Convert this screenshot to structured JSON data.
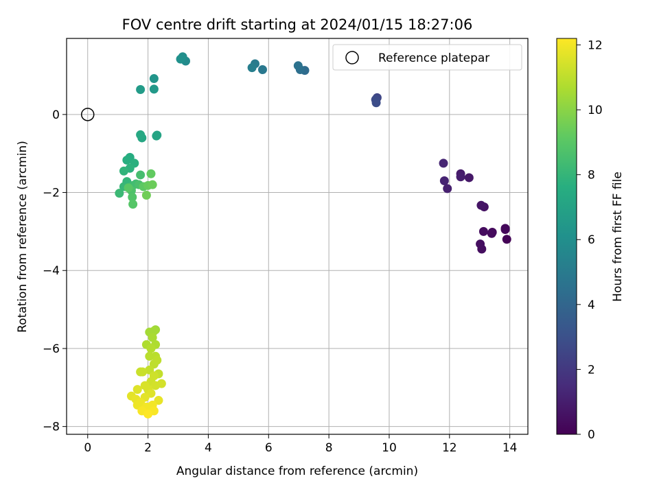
{
  "chart_data": {
    "type": "scatter",
    "title": "FOV centre drift starting at 2024/01/15 18:27:06",
    "xlabel": "Angular distance from reference (arcmin)",
    "ylabel": "Rotation from reference (arcmin)",
    "xlim": [
      -0.7,
      14.6
    ],
    "ylim": [
      -8.2,
      1.95
    ],
    "x_ticks": [
      0,
      2,
      4,
      6,
      8,
      10,
      12,
      14
    ],
    "x_tick_labels": [
      "0",
      "2",
      "4",
      "6",
      "8",
      "10",
      "12",
      "14"
    ],
    "y_ticks": [
      0,
      -2,
      -4,
      -6,
      -8
    ],
    "y_tick_labels": [
      "0",
      "−2",
      "−4",
      "−6",
      "−8"
    ],
    "grid": true,
    "legend": {
      "placement": "top-right",
      "entries": [
        {
          "label": "Reference platepar",
          "marker": "open-circle"
        }
      ]
    },
    "reference_point": {
      "x": 0,
      "y": 0
    },
    "colorbar": {
      "label": "Hours from first FF file",
      "colormap": "viridis",
      "range": [
        0,
        12.2
      ],
      "ticks": [
        0,
        2,
        4,
        6,
        8,
        10,
        12
      ],
      "tick_labels": [
        "0",
        "2",
        "4",
        "6",
        "8",
        "10",
        "12"
      ]
    },
    "points": [
      {
        "x": 13.9,
        "y": -3.2,
        "h": 0.1
      },
      {
        "x": 13.85,
        "y": -2.95,
        "h": 0.2
      },
      {
        "x": 13.85,
        "y": -2.92,
        "h": 0.25
      },
      {
        "x": 13.42,
        "y": -3.02,
        "h": 0.3
      },
      {
        "x": 13.4,
        "y": -3.05,
        "h": 0.35
      },
      {
        "x": 13.13,
        "y": -3.0,
        "h": 0.4
      },
      {
        "x": 13.07,
        "y": -3.45,
        "h": 0.45
      },
      {
        "x": 13.02,
        "y": -3.32,
        "h": 0.5
      },
      {
        "x": 13.15,
        "y": -2.37,
        "h": 0.6
      },
      {
        "x": 13.05,
        "y": -2.33,
        "h": 0.7
      },
      {
        "x": 12.65,
        "y": -1.62,
        "h": 0.8
      },
      {
        "x": 12.37,
        "y": -1.52,
        "h": 0.9
      },
      {
        "x": 12.37,
        "y": -1.6,
        "h": 1.0
      },
      {
        "x": 11.93,
        "y": -1.9,
        "h": 1.1
      },
      {
        "x": 11.83,
        "y": -1.7,
        "h": 1.2
      },
      {
        "x": 11.8,
        "y": -1.25,
        "h": 1.3
      },
      {
        "x": 9.6,
        "y": 0.43,
        "h": 2.6
      },
      {
        "x": 9.55,
        "y": 0.38,
        "h": 2.8
      },
      {
        "x": 9.57,
        "y": 0.3,
        "h": 2.9
      },
      {
        "x": 7.2,
        "y": 1.13,
        "h": 4.3
      },
      {
        "x": 7.05,
        "y": 1.15,
        "h": 4.5
      },
      {
        "x": 6.98,
        "y": 1.25,
        "h": 4.6
      },
      {
        "x": 5.8,
        "y": 1.15,
        "h": 4.9
      },
      {
        "x": 5.55,
        "y": 1.3,
        "h": 5.0
      },
      {
        "x": 5.45,
        "y": 1.2,
        "h": 5.2
      },
      {
        "x": 3.25,
        "y": 1.37,
        "h": 5.8
      },
      {
        "x": 3.15,
        "y": 1.48,
        "h": 6.0
      },
      {
        "x": 3.08,
        "y": 1.42,
        "h": 6.1
      },
      {
        "x": 2.2,
        "y": 0.92,
        "h": 6.3
      },
      {
        "x": 2.2,
        "y": 0.65,
        "h": 6.5
      },
      {
        "x": 1.75,
        "y": 0.64,
        "h": 6.6
      },
      {
        "x": 2.3,
        "y": -0.53,
        "h": 7.0
      },
      {
        "x": 2.28,
        "y": -0.55,
        "h": 7.1
      },
      {
        "x": 1.8,
        "y": -0.6,
        "h": 7.2
      },
      {
        "x": 1.75,
        "y": -0.52,
        "h": 7.3
      },
      {
        "x": 1.4,
        "y": -1.1,
        "h": 7.5
      },
      {
        "x": 1.3,
        "y": -1.17,
        "h": 7.6
      },
      {
        "x": 1.55,
        "y": -1.25,
        "h": 7.7
      },
      {
        "x": 1.4,
        "y": -1.38,
        "h": 7.8
      },
      {
        "x": 1.2,
        "y": -1.45,
        "h": 7.9
      },
      {
        "x": 1.3,
        "y": -1.72,
        "h": 8.0
      },
      {
        "x": 1.2,
        "y": -1.85,
        "h": 8.1
      },
      {
        "x": 1.05,
        "y": -2.02,
        "h": 8.2
      },
      {
        "x": 1.5,
        "y": -1.82,
        "h": 8.3
      },
      {
        "x": 1.6,
        "y": -1.78,
        "h": 8.4
      },
      {
        "x": 1.75,
        "y": -1.55,
        "h": 8.5
      },
      {
        "x": 1.7,
        "y": -1.8,
        "h": 8.6
      },
      {
        "x": 1.45,
        "y": -1.95,
        "h": 8.7
      },
      {
        "x": 1.48,
        "y": -2.12,
        "h": 8.8
      },
      {
        "x": 1.5,
        "y": -2.3,
        "h": 8.9
      },
      {
        "x": 1.35,
        "y": -1.88,
        "h": 9.0
      },
      {
        "x": 1.85,
        "y": -1.85,
        "h": 9.1
      },
      {
        "x": 2.1,
        "y": -1.52,
        "h": 9.2
      },
      {
        "x": 2.0,
        "y": -1.82,
        "h": 9.3
      },
      {
        "x": 2.15,
        "y": -1.8,
        "h": 9.4
      },
      {
        "x": 1.95,
        "y": -2.07,
        "h": 9.5
      },
      {
        "x": 2.25,
        "y": -5.52,
        "h": 10.4
      },
      {
        "x": 2.05,
        "y": -5.58,
        "h": 10.5
      },
      {
        "x": 2.2,
        "y": -5.55,
        "h": 10.5
      },
      {
        "x": 2.15,
        "y": -5.72,
        "h": 10.6
      },
      {
        "x": 1.95,
        "y": -5.9,
        "h": 10.7
      },
      {
        "x": 2.25,
        "y": -5.9,
        "h": 10.7
      },
      {
        "x": 2.1,
        "y": -6.0,
        "h": 10.8
      },
      {
        "x": 2.05,
        "y": -6.2,
        "h": 10.9
      },
      {
        "x": 2.25,
        "y": -6.2,
        "h": 10.9
      },
      {
        "x": 2.3,
        "y": -6.3,
        "h": 11.0
      },
      {
        "x": 2.2,
        "y": -6.4,
        "h": 11.0
      },
      {
        "x": 2.35,
        "y": -6.65,
        "h": 11.1
      },
      {
        "x": 2.05,
        "y": -6.55,
        "h": 11.1
      },
      {
        "x": 1.75,
        "y": -6.6,
        "h": 11.2
      },
      {
        "x": 1.82,
        "y": -6.6,
        "h": 11.2
      },
      {
        "x": 2.2,
        "y": -6.7,
        "h": 11.3
      },
      {
        "x": 2.1,
        "y": -6.85,
        "h": 11.3
      },
      {
        "x": 2.45,
        "y": -6.9,
        "h": 11.4
      },
      {
        "x": 2.25,
        "y": -6.95,
        "h": 11.4
      },
      {
        "x": 1.9,
        "y": -6.95,
        "h": 11.5
      },
      {
        "x": 2.0,
        "y": -7.05,
        "h": 11.5
      },
      {
        "x": 1.65,
        "y": -7.05,
        "h": 11.6
      },
      {
        "x": 2.1,
        "y": -7.15,
        "h": 11.6
      },
      {
        "x": 1.9,
        "y": -7.25,
        "h": 11.7
      },
      {
        "x": 1.45,
        "y": -7.22,
        "h": 11.7
      },
      {
        "x": 1.6,
        "y": -7.3,
        "h": 11.8
      },
      {
        "x": 2.35,
        "y": -7.33,
        "h": 11.8
      },
      {
        "x": 1.75,
        "y": -7.38,
        "h": 11.9
      },
      {
        "x": 1.65,
        "y": -7.45,
        "h": 11.9
      },
      {
        "x": 1.95,
        "y": -7.5,
        "h": 12.0
      },
      {
        "x": 2.15,
        "y": -7.45,
        "h": 12.0
      },
      {
        "x": 1.8,
        "y": -7.6,
        "h": 12.1
      },
      {
        "x": 2.2,
        "y": -7.6,
        "h": 12.1
      },
      {
        "x": 2.0,
        "y": -7.68,
        "h": 12.2
      }
    ]
  }
}
